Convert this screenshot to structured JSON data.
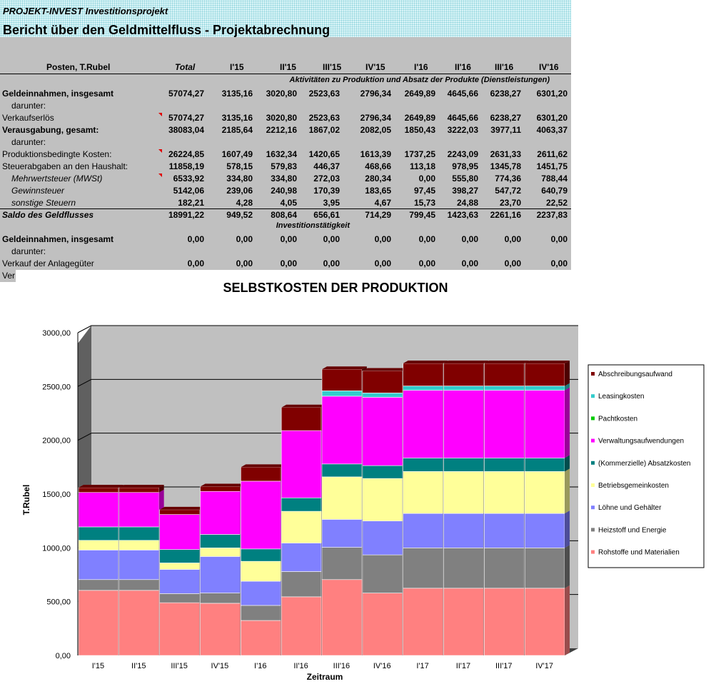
{
  "header": {
    "subtitle": "PROJEKT-INVEST  Investitionsprojekt",
    "title": "Bericht über den Geldmittelfluss - Projektabrechnung"
  },
  "table": {
    "columns": [
      "Posten, T.Rubel",
      "Total",
      "I'15",
      "II'15",
      "III'15",
      "IV'15",
      "I'16",
      "II'16",
      "III'16",
      "IV'16"
    ],
    "section1": "Aktivitäten zu Produktion und Absatz der Produkte (Dienstleistungen)",
    "section2": "Investitionstätigkeit",
    "rows": [
      {
        "label": "Geldeinnahmen, insgesamt",
        "style": "bold",
        "values": [
          "57074,27",
          "3135,16",
          "3020,80",
          "2523,63",
          "2796,34",
          "2649,89",
          "4645,66",
          "6238,27",
          "6301,20"
        ]
      },
      {
        "label": "darunter:",
        "style": "indent",
        "values": []
      },
      {
        "label": "Verkaufserlös",
        "style": "normal",
        "marker": true,
        "values": [
          "57074,27",
          "3135,16",
          "3020,80",
          "2523,63",
          "2796,34",
          "2649,89",
          "4645,66",
          "6238,27",
          "6301,20"
        ]
      },
      {
        "label": "Verausgabung, gesamt:",
        "style": "bold",
        "values": [
          "38083,04",
          "2185,64",
          "2212,16",
          "1867,02",
          "2082,05",
          "1850,43",
          "3222,03",
          "3977,11",
          "4063,37"
        ]
      },
      {
        "label": "darunter:",
        "style": "indent",
        "values": []
      },
      {
        "label": "Produktionsbedingte Kosten:",
        "style": "normal",
        "marker": true,
        "values": [
          "26224,85",
          "1607,49",
          "1632,34",
          "1420,65",
          "1613,39",
          "1737,25",
          "2243,09",
          "2631,33",
          "2611,62"
        ]
      },
      {
        "label": "Steuerabgaben an den Haushalt:",
        "style": "normal",
        "values": [
          "11858,19",
          "578,15",
          "579,83",
          "446,37",
          "468,66",
          "113,18",
          "978,95",
          "1345,78",
          "1451,75"
        ]
      },
      {
        "label": "Mehrwertsteuer (MWSt)",
        "style": "italic",
        "marker": true,
        "values": [
          "6533,92",
          "334,80",
          "334,80",
          "272,03",
          "280,34",
          "0,00",
          "555,80",
          "774,36",
          "788,44"
        ]
      },
      {
        "label": "Gewinnsteuer",
        "style": "italic",
        "values": [
          "5142,06",
          "239,06",
          "240,98",
          "170,39",
          "183,65",
          "97,45",
          "398,27",
          "547,72",
          "640,79"
        ]
      },
      {
        "label": "sonstige Steuern",
        "style": "italic",
        "values": [
          "182,21",
          "4,28",
          "4,05",
          "3,95",
          "4,67",
          "15,73",
          "24,88",
          "23,70",
          "22,52"
        ]
      },
      {
        "label": "Saldo des Geldflusses",
        "style": "bolditalic",
        "values": [
          "18991,22",
          "949,52",
          "808,64",
          "656,61",
          "714,29",
          "799,45",
          "1423,63",
          "2261,16",
          "2237,83"
        ]
      },
      {
        "label": "Geldeinnahmen, insgesamt",
        "style": "bold",
        "values": [
          "0,00",
          "0,00",
          "0,00",
          "0,00",
          "0,00",
          "0,00",
          "0,00",
          "0,00",
          "0,00"
        ]
      },
      {
        "label": "darunter:",
        "style": "indent",
        "values": []
      },
      {
        "label": "Verkauf der Anlagegüter",
        "style": "normal",
        "values": [
          "0,00",
          "0,00",
          "0,00",
          "0,00",
          "0,00",
          "0,00",
          "0,00",
          "0,00",
          "0,00"
        ]
      }
    ],
    "cut_label": "Ver"
  },
  "chart_data": {
    "type": "bar",
    "stacked": true,
    "title": "SELBSTKOSTEN DER PRODUKTION",
    "xlabel": "Zeitraum",
    "ylabel": "T.Rubel",
    "ylim": [
      0,
      3000
    ],
    "yticks": [
      "0,00",
      "500,00",
      "1000,00",
      "1500,00",
      "2000,00",
      "2500,00",
      "3000,00"
    ],
    "categories": [
      "I'15",
      "II'15",
      "III'15",
      "IV'15",
      "I'16",
      "II'16",
      "III'16",
      "IV'16",
      "I'17",
      "II'17",
      "III'17",
      "IV'17"
    ],
    "legend_position": "right",
    "series": [
      {
        "name": "Rohstoffe und Materialien",
        "color": "#ff8080",
        "values": [
          605,
          605,
          490,
          485,
          325,
          545,
          705,
          580,
          625,
          625,
          625,
          625
        ]
      },
      {
        "name": "Heizstoff und Energie",
        "color": "#808080",
        "values": [
          100,
          100,
          85,
          95,
          140,
          235,
          300,
          355,
          375,
          375,
          375,
          375
        ]
      },
      {
        "name": "Löhne und Gehälter",
        "color": "#8080ff",
        "values": [
          275,
          275,
          225,
          340,
          225,
          265,
          260,
          315,
          320,
          320,
          320,
          320
        ]
      },
      {
        "name": "Betriebsgemeinkosten",
        "color": "#ffff99",
        "values": [
          90,
          90,
          60,
          80,
          185,
          295,
          395,
          395,
          390,
          390,
          390,
          390
        ]
      },
      {
        "name": "(Kommerzielle) Absatzkosten",
        "color": "#008080",
        "values": [
          125,
          125,
          125,
          125,
          115,
          125,
          120,
          120,
          125,
          125,
          125,
          125
        ]
      },
      {
        "name": "Verwaltungsaufwendungen",
        "color": "#ff00ff",
        "values": [
          320,
          320,
          325,
          400,
          630,
          625,
          630,
          635,
          630,
          630,
          630,
          630
        ]
      },
      {
        "name": "Pachtkosten",
        "color": "#00cc00",
        "values": [
          0,
          0,
          0,
          0,
          0,
          0,
          0,
          0,
          0,
          0,
          0,
          0
        ]
      },
      {
        "name": "Leasingkosten",
        "color": "#33cccc",
        "values": [
          0,
          0,
          0,
          0,
          0,
          0,
          50,
          40,
          40,
          40,
          40,
          40
        ]
      },
      {
        "name": "Abschreibungsaufwand",
        "color": "#800000",
        "values": [
          45,
          45,
          45,
          45,
          130,
          215,
          200,
          205,
          210,
          210,
          210,
          210
        ]
      }
    ]
  }
}
